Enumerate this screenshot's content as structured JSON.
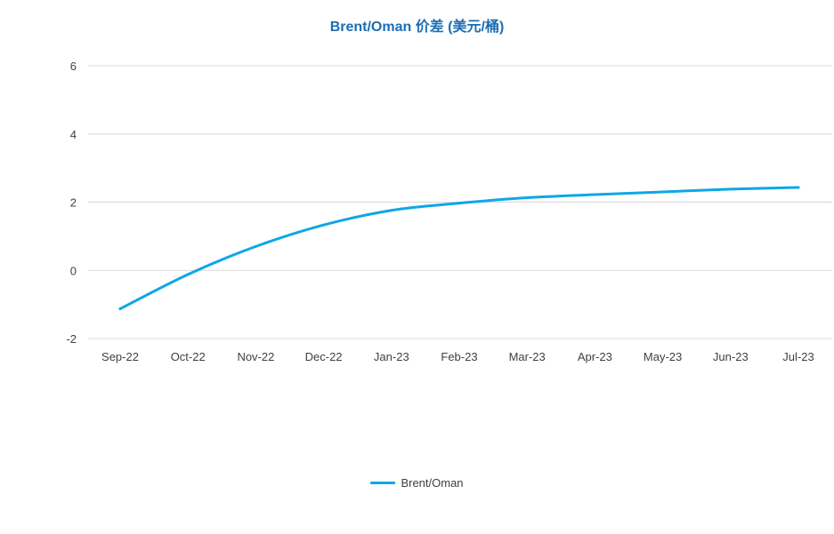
{
  "chart_data": {
    "type": "line",
    "title": "Brent/Oman 价差 (美元/桶)",
    "xlabel": "",
    "ylabel": "",
    "categories": [
      "Sep-22",
      "Oct-22",
      "Nov-22",
      "Dec-22",
      "Jan-23",
      "Feb-23",
      "Mar-23",
      "Apr-23",
      "May-23",
      "Jun-23",
      "Jul-23"
    ],
    "series": [
      {
        "name": "Brent/Oman",
        "color": "#0EA7E6",
        "values": [
          -1.13,
          -0.12,
          0.7,
          1.33,
          1.76,
          1.97,
          2.13,
          2.22,
          2.3,
          2.38,
          2.43
        ]
      }
    ],
    "ylim": [
      -2,
      6
    ],
    "yticks": [
      -2,
      0,
      2,
      4,
      6
    ],
    "grid": true,
    "legend_position": "bottom",
    "colors": {
      "title": "#1B6DB5",
      "grid": "#D9D9D9",
      "tick_text": "#404040"
    }
  }
}
